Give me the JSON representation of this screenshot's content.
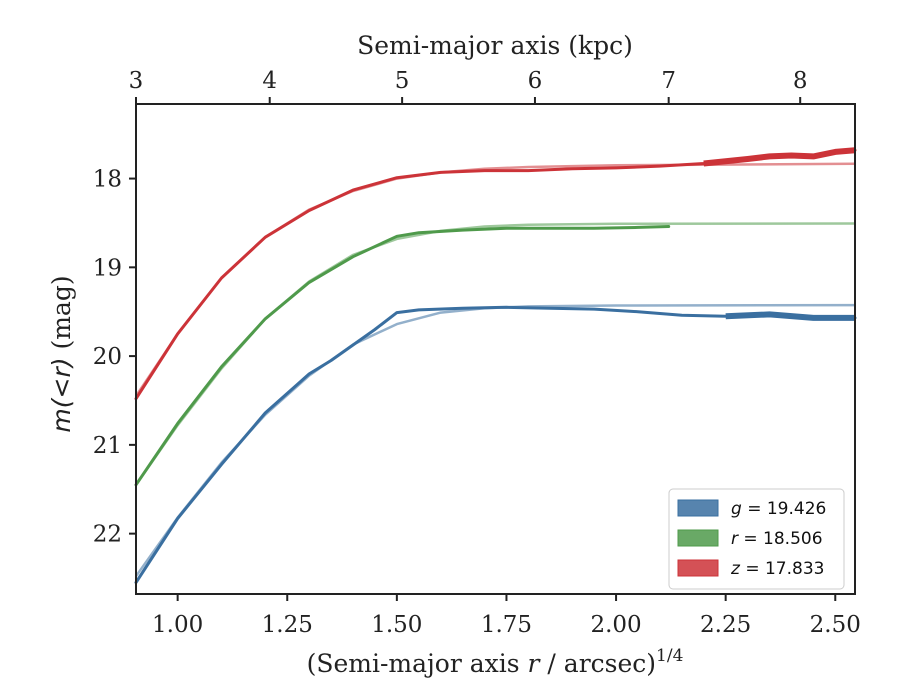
{
  "chart_data": {
    "type": "line",
    "xlabel": "(Semi-major axis r / arcsec)^1/4",
    "xlabel_parts": {
      "prefix": "(Semi-major axis ",
      "var": "r",
      "mid": " / arcsec)",
      "sup": "1/4"
    },
    "ylabel": "m(<r) (mag)",
    "ylabel_parts": {
      "math": "m(<r)",
      "unit": " (mag)"
    },
    "top_xlabel": "Semi-major axis (kpc)",
    "xlim": [
      0.905,
      2.545
    ],
    "ylim": [
      22.68,
      17.16
    ],
    "y_inverted": true,
    "xticks": [
      1.0,
      1.25,
      1.5,
      1.75,
      2.0,
      2.25,
      2.5
    ],
    "xtick_labels": [
      "1.00",
      "1.25",
      "1.50",
      "1.75",
      "2.00",
      "2.25",
      "2.50"
    ],
    "yticks": [
      18,
      19,
      20,
      21,
      22
    ],
    "ytick_labels": [
      "18",
      "19",
      "20",
      "21",
      "22"
    ],
    "top_ticks_kpc": [
      3,
      4,
      5,
      6,
      7,
      8
    ],
    "top_tick_labels": [
      "3",
      "4",
      "5",
      "6",
      "7",
      "8"
    ],
    "top_axis_x_values": [
      0.905,
      1.21,
      1.512,
      1.815,
      2.12,
      2.42
    ],
    "grid": false,
    "legend_position": "lower-right",
    "series": [
      {
        "name": "g = 19.426",
        "legend": {
          "var": "g",
          "text": " = 19.426"
        },
        "color": "#3a6fa0",
        "fit_asymptote": 19.426,
        "fit": [
          [
            0.905,
            22.48
          ],
          [
            1.0,
            21.82
          ],
          [
            1.1,
            21.2
          ],
          [
            1.2,
            20.66
          ],
          [
            1.3,
            20.22
          ],
          [
            1.4,
            19.87
          ],
          [
            1.5,
            19.64
          ],
          [
            1.6,
            19.51
          ],
          [
            1.7,
            19.46
          ],
          [
            1.8,
            19.44
          ],
          [
            2.0,
            19.43
          ],
          [
            2.545,
            19.426
          ]
        ],
        "data": [
          [
            0.905,
            22.55
          ],
          [
            1.0,
            21.83
          ],
          [
            1.1,
            21.22
          ],
          [
            1.2,
            20.64
          ],
          [
            1.3,
            20.2
          ],
          [
            1.35,
            20.05
          ],
          [
            1.45,
            19.7
          ],
          [
            1.5,
            19.51
          ],
          [
            1.55,
            19.48
          ],
          [
            1.65,
            19.46
          ],
          [
            1.75,
            19.45
          ],
          [
            1.85,
            19.46
          ],
          [
            1.95,
            19.47
          ],
          [
            2.05,
            19.5
          ],
          [
            2.15,
            19.54
          ],
          [
            2.25,
            19.55
          ],
          [
            2.35,
            19.53
          ],
          [
            2.45,
            19.57
          ],
          [
            2.545,
            19.57
          ]
        ],
        "data_end_width": [
          2.2,
          2.545
        ]
      },
      {
        "name": "r = 18.506",
        "legend": {
          "var": "r",
          "text": " = 18.506"
        },
        "color": "#4f9a4b",
        "fit_asymptote": 18.506,
        "fit": [
          [
            0.905,
            21.45
          ],
          [
            1.0,
            20.78
          ],
          [
            1.1,
            20.14
          ],
          [
            1.2,
            19.58
          ],
          [
            1.3,
            19.16
          ],
          [
            1.4,
            18.86
          ],
          [
            1.5,
            18.68
          ],
          [
            1.6,
            18.59
          ],
          [
            1.7,
            18.54
          ],
          [
            1.8,
            18.52
          ],
          [
            2.0,
            18.51
          ],
          [
            2.545,
            18.506
          ]
        ],
        "data": [
          [
            0.905,
            21.45
          ],
          [
            1.0,
            20.76
          ],
          [
            1.1,
            20.12
          ],
          [
            1.2,
            19.58
          ],
          [
            1.3,
            19.17
          ],
          [
            1.4,
            18.88
          ],
          [
            1.5,
            18.65
          ],
          [
            1.55,
            18.61
          ],
          [
            1.65,
            18.58
          ],
          [
            1.75,
            18.56
          ],
          [
            1.85,
            18.56
          ],
          [
            1.95,
            18.56
          ],
          [
            2.05,
            18.55
          ],
          [
            2.12,
            18.54
          ]
        ]
      },
      {
        "name": "z = 17.833",
        "legend": {
          "var": "z",
          "text": " = 17.833"
        },
        "color": "#cc3338",
        "fit_asymptote": 17.833,
        "fit": [
          [
            0.905,
            20.45
          ],
          [
            1.0,
            19.75
          ],
          [
            1.1,
            19.12
          ],
          [
            1.2,
            18.66
          ],
          [
            1.3,
            18.35
          ],
          [
            1.4,
            18.14
          ],
          [
            1.5,
            18.0
          ],
          [
            1.6,
            17.93
          ],
          [
            1.7,
            17.89
          ],
          [
            1.8,
            17.87
          ],
          [
            2.0,
            17.85
          ],
          [
            2.545,
            17.833
          ]
        ],
        "data": [
          [
            0.905,
            20.48
          ],
          [
            1.0,
            19.75
          ],
          [
            1.1,
            19.12
          ],
          [
            1.2,
            18.66
          ],
          [
            1.3,
            18.36
          ],
          [
            1.4,
            18.13
          ],
          [
            1.5,
            17.99
          ],
          [
            1.6,
            17.93
          ],
          [
            1.7,
            17.91
          ],
          [
            1.8,
            17.91
          ],
          [
            1.9,
            17.89
          ],
          [
            2.0,
            17.88
          ],
          [
            2.1,
            17.86
          ],
          [
            2.2,
            17.83
          ],
          [
            2.3,
            17.78
          ],
          [
            2.35,
            17.75
          ],
          [
            2.4,
            17.74
          ],
          [
            2.45,
            17.75
          ],
          [
            2.5,
            17.7
          ],
          [
            2.545,
            17.68
          ]
        ],
        "data_end_width": [
          2.2,
          2.545
        ]
      }
    ]
  }
}
